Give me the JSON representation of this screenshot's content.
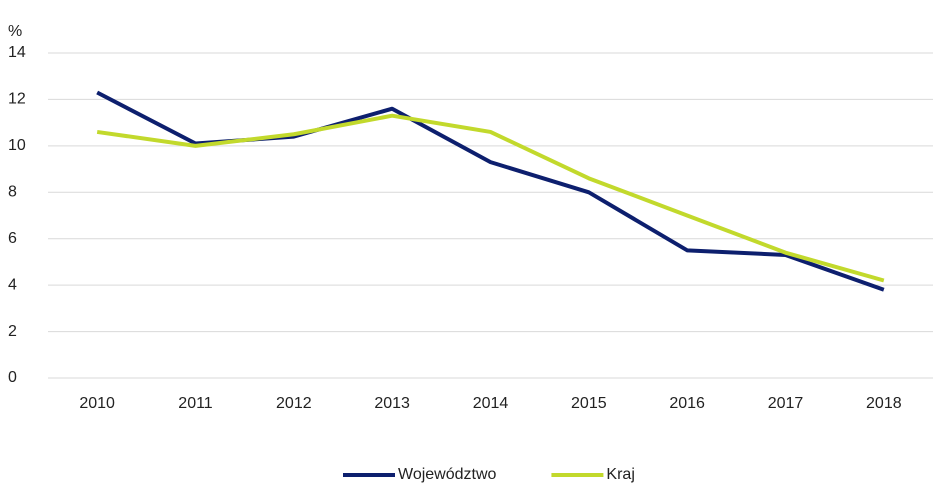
{
  "chart_data": {
    "type": "line",
    "y_label": "%",
    "categories": [
      "2010",
      "2011",
      "2012",
      "2013",
      "2014",
      "2015",
      "2016",
      "2017",
      "2018"
    ],
    "series": [
      {
        "name": "Województwo",
        "color": "#0d1f6e",
        "values": [
          12.3,
          10.1,
          10.4,
          11.6,
          9.3,
          8.0,
          5.5,
          5.3,
          3.8
        ]
      },
      {
        "name": "Kraj",
        "color": "#c2d92c",
        "values": [
          10.6,
          10.0,
          10.5,
          11.3,
          10.6,
          8.6,
          7.0,
          5.4,
          4.2
        ]
      }
    ],
    "ylim": [
      0,
      14
    ],
    "yticks": [
      0,
      2,
      4,
      6,
      8,
      10,
      12,
      14
    ],
    "grid": true,
    "legend": "bottom"
  }
}
